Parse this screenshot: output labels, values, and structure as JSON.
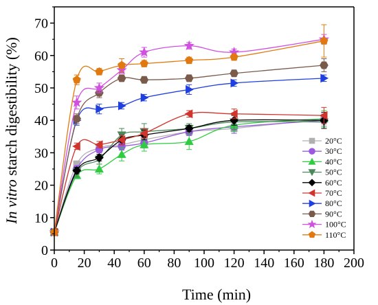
{
  "chart_data": {
    "type": "line",
    "title": "",
    "xlabel": "Time (min)",
    "ylabel_italic": "In vitro",
    "ylabel_rest": " starch digestibility (%)",
    "xlim": [
      0,
      200
    ],
    "ylim": [
      0,
      75
    ],
    "x_ticks": [
      0,
      20,
      40,
      60,
      80,
      100,
      120,
      140,
      160,
      180,
      200
    ],
    "y_ticks": [
      0,
      10,
      20,
      30,
      40,
      50,
      60,
      70
    ],
    "grid": false,
    "legend_position": "bottom-right",
    "x": [
      0,
      15,
      30,
      45,
      60,
      90,
      120,
      180
    ],
    "series": [
      {
        "name": "20°C",
        "marker": "square",
        "color": "#b0b0b0",
        "values": [
          5.5,
          26.5,
          31.5,
          32.5,
          34.0,
          36.5,
          37.5,
          40.5
        ]
      },
      {
        "name": "30°C",
        "marker": "circle",
        "color": "#9b59e0",
        "values": [
          5.5,
          25.0,
          31.0,
          32.0,
          33.0,
          36.5,
          38.0,
          40.0
        ]
      },
      {
        "name": "40°C",
        "marker": "triangle-up",
        "color": "#2ecc40",
        "values": [
          5.5,
          23.0,
          25.0,
          29.5,
          32.5,
          33.5,
          38.5,
          40.5
        ]
      },
      {
        "name": "50°C",
        "marker": "triangle-down",
        "color": "#4a8a5a",
        "values": [
          5.5,
          24.0,
          28.0,
          35.5,
          36.5,
          37.5,
          39.5,
          39.5
        ]
      },
      {
        "name": "60°C",
        "marker": "diamond",
        "color": "#000000",
        "values": [
          5.5,
          24.5,
          28.5,
          34.0,
          35.5,
          37.5,
          40.0,
          40.0
        ]
      },
      {
        "name": "70°C",
        "marker": "triangle-left",
        "color": "#d0342c",
        "values": [
          5.5,
          32.0,
          32.5,
          34.0,
          36.0,
          42.0,
          42.0,
          41.5
        ]
      },
      {
        "name": "80°C",
        "marker": "triangle-right",
        "color": "#1f3fe0",
        "values": [
          5.5,
          40.0,
          43.5,
          44.5,
          47.0,
          49.5,
          51.5,
          53.0
        ]
      },
      {
        "name": "90°C",
        "marker": "hexagon",
        "color": "#7a5a4a",
        "values": [
          5.5,
          40.5,
          48.5,
          53.0,
          52.5,
          53.0,
          54.5,
          57.0
        ]
      },
      {
        "name": "100°C",
        "marker": "star",
        "color": "#d050e0",
        "values": [
          5.5,
          45.5,
          50.0,
          55.5,
          61.0,
          63.0,
          61.0,
          65.0
        ]
      },
      {
        "name": "110°C",
        "marker": "pentagon",
        "color": "#e07a10",
        "values": [
          5.5,
          52.5,
          55.0,
          57.0,
          57.5,
          58.5,
          59.5,
          64.5
        ]
      }
    ],
    "error": [
      [
        0.3,
        1.0,
        1.0,
        1.5,
        1.5,
        1.2,
        1.5,
        2.0
      ],
      [
        0.3,
        1.0,
        1.0,
        1.2,
        1.5,
        1.2,
        2.0,
        2.0
      ],
      [
        0.3,
        1.0,
        1.5,
        2.0,
        2.0,
        2.5,
        2.0,
        2.5
      ],
      [
        0.3,
        1.5,
        1.5,
        2.0,
        2.5,
        1.5,
        2.5,
        2.0
      ],
      [
        0.3,
        1.0,
        1.0,
        1.5,
        1.5,
        1.0,
        1.5,
        2.5
      ],
      [
        0.3,
        1.0,
        1.0,
        1.5,
        1.5,
        1.0,
        1.5,
        2.5
      ],
      [
        0.3,
        1.5,
        1.5,
        1.0,
        1.0,
        1.5,
        1.0,
        1.0
      ],
      [
        0.3,
        1.5,
        1.5,
        1.0,
        1.0,
        1.0,
        1.0,
        2.0
      ],
      [
        0.3,
        2.0,
        1.5,
        1.0,
        1.5,
        1.0,
        1.0,
        1.5
      ],
      [
        0.3,
        1.5,
        1.0,
        2.0,
        1.0,
        1.0,
        1.0,
        5.0
      ]
    ]
  }
}
